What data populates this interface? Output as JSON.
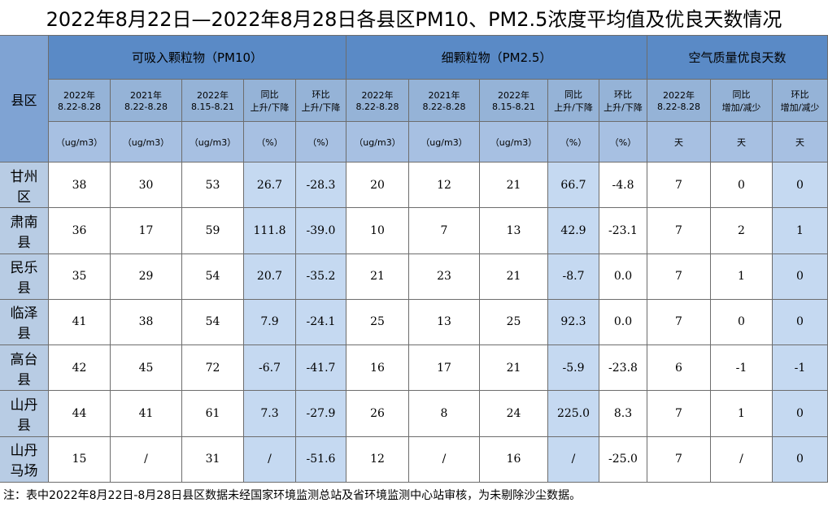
{
  "title": "2022年8月22日—2022年8月28日各县区PM10、PM2.5浓度平均值及优良天数情况",
  "corner": "县区",
  "groups": [
    "可吸入颗粒物（PM10）",
    "细颗粒物（PM2.5）",
    "空气质量优良天数"
  ],
  "subheaders": [
    [
      "2022年",
      "8.22-8.28"
    ],
    [
      "2021年",
      "8.22-8.28"
    ],
    [
      "2022年",
      "8.15-8.21"
    ],
    [
      "同比",
      "上升/下降"
    ],
    [
      "环比",
      "上升/下降"
    ],
    [
      "2022年",
      "8.22-8.28"
    ],
    [
      "2021年",
      "8.22-8.28"
    ],
    [
      "2022年",
      "8.15-8.21"
    ],
    [
      "同比",
      "上升/下降"
    ],
    [
      "环比",
      "上升/下降"
    ],
    [
      "2022年",
      "8.22-8.28"
    ],
    [
      "同比",
      "增加/减少"
    ],
    [
      "环比",
      "增加/减少"
    ]
  ],
  "units": [
    "（ug/m3）",
    "（ug/m3）",
    "（ug/m3）",
    "（%）",
    "（%）",
    "（ug/m3）",
    "（ug/m3）",
    "（ug/m3）",
    "（%）",
    "（%）",
    "天",
    "天",
    "天"
  ],
  "rows": [
    [
      "甘州区",
      "38",
      "30",
      "53",
      "26.7",
      "-28.3",
      "20",
      "12",
      "21",
      "66.7",
      "-4.8",
      "7",
      "0",
      "0"
    ],
    [
      "肃南县",
      "36",
      "17",
      "59",
      "111.8",
      "-39.0",
      "10",
      "7",
      "13",
      "42.9",
      "-23.1",
      "7",
      "2",
      "1"
    ],
    [
      "民乐县",
      "35",
      "29",
      "54",
      "20.7",
      "-35.2",
      "21",
      "23",
      "21",
      "-8.7",
      "0.0",
      "7",
      "1",
      "0"
    ],
    [
      "临泽县",
      "41",
      "38",
      "54",
      "7.9",
      "-24.1",
      "25",
      "13",
      "25",
      "92.3",
      "0.0",
      "7",
      "0",
      "0"
    ],
    [
      "高台县",
      "42",
      "45",
      "72",
      "-6.7",
      "-41.7",
      "16",
      "17",
      "21",
      "-5.9",
      "-23.8",
      "6",
      "-1",
      "-1"
    ],
    [
      "山丹县",
      "44",
      "41",
      "61",
      "7.3",
      "-27.9",
      "26",
      "8",
      "24",
      "225.0",
      "8.3",
      "7",
      "1",
      "0"
    ],
    [
      "山丹马场",
      "15",
      "/",
      "31",
      "/",
      "-51.6",
      "12",
      "/",
      "16",
      "/",
      "-25.0",
      "7",
      "/",
      "0"
    ]
  ],
  "footnote": "注：表中2022年8月22日-8月28日县区数据未经国家环境监测总站及省环境监测中心站审核，为未剔除沙尘数据。"
}
